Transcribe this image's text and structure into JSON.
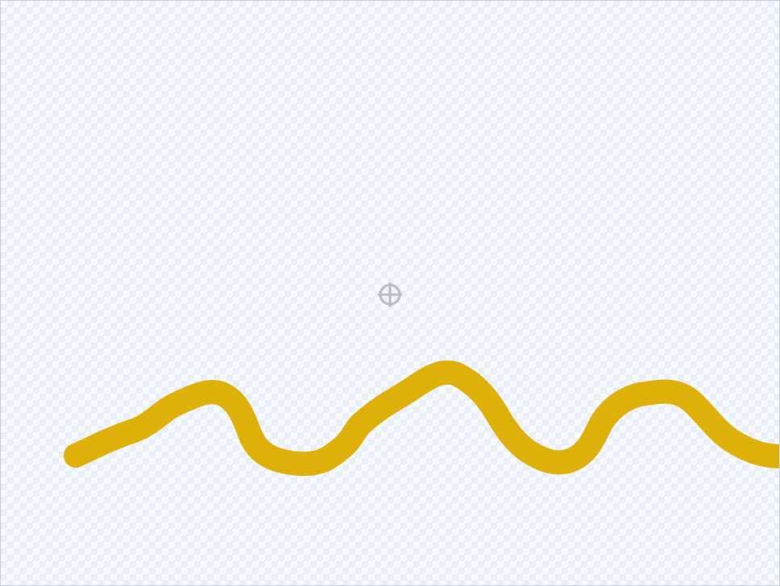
{
  "canvas": {
    "background": "checkerboard",
    "border_color": "#c3d3ea"
  },
  "stroke": {
    "tool": "brush",
    "color": "#ddb109",
    "shape": "wavy-line"
  },
  "center_marker": {
    "icon": "crosshair-icon",
    "color": "#b7bcc6"
  }
}
